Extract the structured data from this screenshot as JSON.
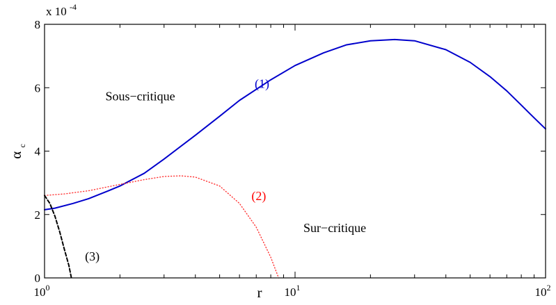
{
  "chart_data": {
    "type": "line",
    "xscale": "log",
    "xlim": [
      1,
      100
    ],
    "ylim": [
      0,
      8
    ],
    "y_multiplier_label": "x 10",
    "y_multiplier_exponent": "-4",
    "xlabel": "r",
    "ylabel_main": "α",
    "ylabel_sub": "c",
    "x_ticks": [
      {
        "value": 1,
        "base": "10",
        "exp": "0"
      },
      {
        "value": 10,
        "base": "10",
        "exp": "1"
      },
      {
        "value": 100,
        "base": "10",
        "exp": "2"
      }
    ],
    "y_ticks": [
      {
        "value": 0,
        "label": "0"
      },
      {
        "value": 2,
        "label": "2"
      },
      {
        "value": 4,
        "label": "4"
      },
      {
        "value": 6,
        "label": "6"
      },
      {
        "value": 8,
        "label": "8"
      }
    ],
    "grid": false,
    "series": [
      {
        "label": "(1)",
        "color": "#0000cc",
        "style": "solid",
        "points": [
          [
            1,
            2.15
          ],
          [
            1.1,
            2.2
          ],
          [
            1.3,
            2.35
          ],
          [
            1.5,
            2.5
          ],
          [
            1.8,
            2.75
          ],
          [
            2,
            2.9
          ],
          [
            2.5,
            3.3
          ],
          [
            3,
            3.75
          ],
          [
            4,
            4.5
          ],
          [
            5,
            5.1
          ],
          [
            6,
            5.6
          ],
          [
            8,
            6.25
          ],
          [
            10,
            6.7
          ],
          [
            13,
            7.1
          ],
          [
            16,
            7.35
          ],
          [
            20,
            7.48
          ],
          [
            25,
            7.52
          ],
          [
            30,
            7.48
          ],
          [
            40,
            7.2
          ],
          [
            50,
            6.8
          ],
          [
            60,
            6.35
          ],
          [
            70,
            5.9
          ],
          [
            80,
            5.45
          ],
          [
            90,
            5.05
          ],
          [
            100,
            4.7
          ]
        ]
      },
      {
        "label": "(2)",
        "color": "#ff3333",
        "style": "dotted",
        "points": [
          [
            1,
            2.6
          ],
          [
            1.2,
            2.65
          ],
          [
            1.5,
            2.75
          ],
          [
            2,
            2.95
          ],
          [
            2.5,
            3.1
          ],
          [
            3,
            3.2
          ],
          [
            3.5,
            3.22
          ],
          [
            4,
            3.18
          ],
          [
            5,
            2.9
          ],
          [
            6,
            2.35
          ],
          [
            7,
            1.6
          ],
          [
            8,
            0.65
          ],
          [
            8.6,
            0
          ]
        ]
      },
      {
        "label": "(3)",
        "color": "#000000",
        "style": "dashed",
        "points": [
          [
            1,
            2.6
          ],
          [
            1.05,
            2.35
          ],
          [
            1.1,
            1.95
          ],
          [
            1.15,
            1.45
          ],
          [
            1.2,
            0.9
          ],
          [
            1.25,
            0.4
          ],
          [
            1.28,
            0
          ]
        ]
      }
    ],
    "annotations": [
      {
        "text": "(1)",
        "x": 6.9,
        "y": 6.0,
        "color": "#0000cc"
      },
      {
        "text": "(2)",
        "x": 6.7,
        "y": 2.45,
        "color": "#ff0000"
      },
      {
        "text": "(3)",
        "x": 1.45,
        "y": 0.55,
        "color": "#000000"
      },
      {
        "text": "Sous−critique",
        "x": 1.75,
        "y": 5.6,
        "color": "#000000"
      },
      {
        "text": "Sur−critique",
        "x": 10.8,
        "y": 1.45,
        "color": "#000000"
      }
    ]
  }
}
